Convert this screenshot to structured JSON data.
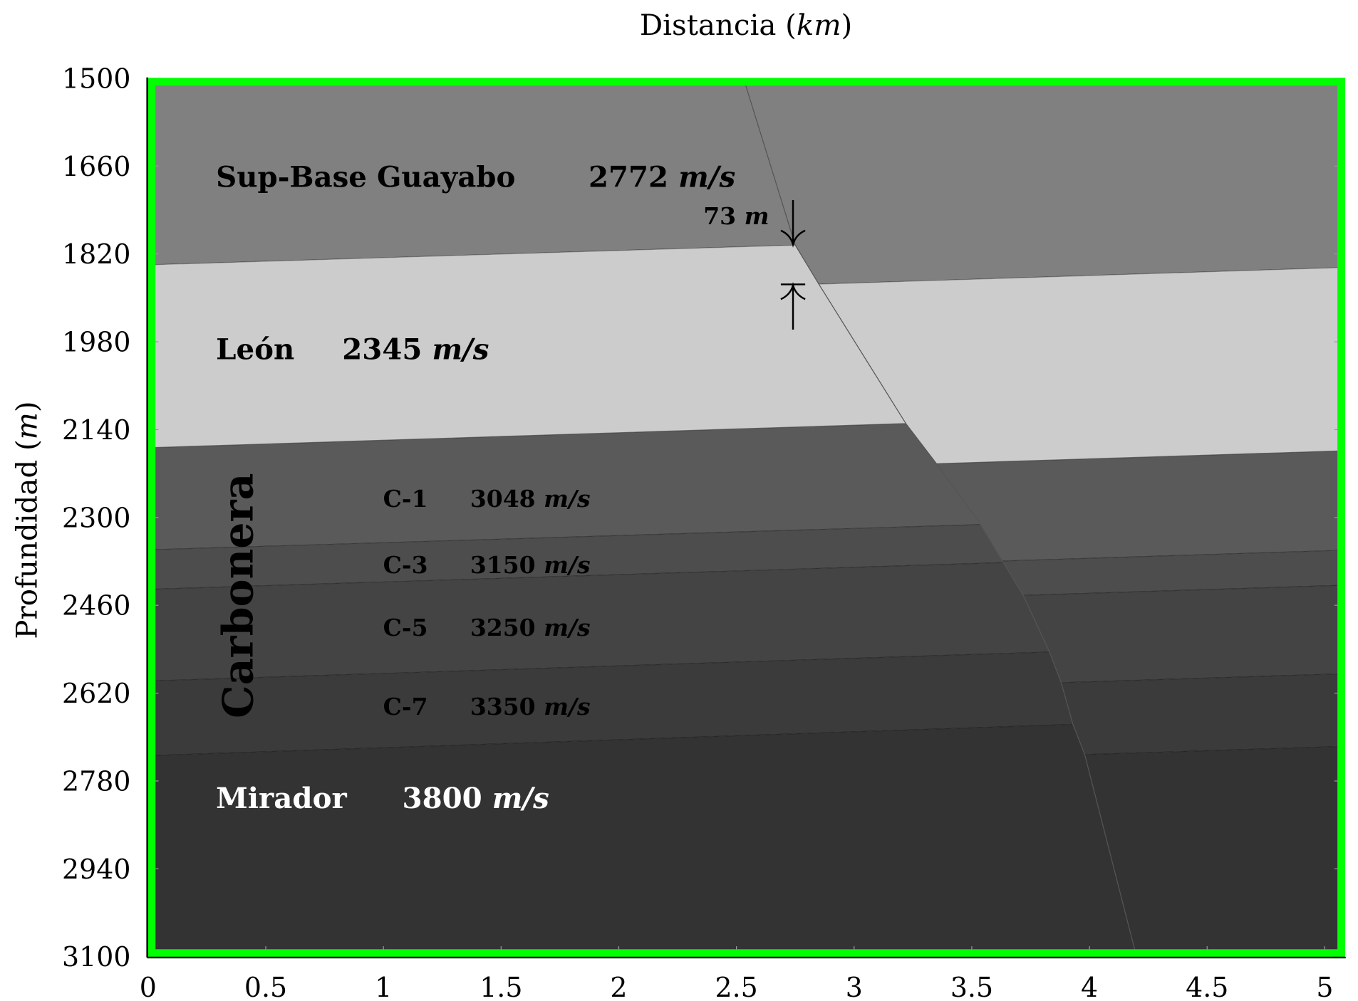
{
  "figure": {
    "x_axis_label": "Distancia",
    "x_axis_unit": "km",
    "y_axis_label": "Profundidad",
    "y_axis_unit": "m",
    "x_ticks": [
      "0",
      "0.5",
      "1",
      "1.5",
      "2",
      "2.5",
      "3",
      "3.5",
      "4",
      "4.5",
      "5"
    ],
    "y_ticks": [
      "1500",
      "1660",
      "1820",
      "1980",
      "2140",
      "2300",
      "2460",
      "2620",
      "2780",
      "2940",
      "3100"
    ],
    "x_range_km": [
      0,
      5.085
    ],
    "y_range_m": [
      1500,
      3100
    ],
    "y_inverted": true,
    "frame_color": "#00ff00"
  },
  "layers": [
    {
      "name": "Sup-Base Guayabo",
      "velocity": "2772",
      "unit": "m/s",
      "color": "#808080"
    },
    {
      "name": "León",
      "velocity": "2345",
      "unit": "m/s",
      "color": "#cccccc"
    },
    {
      "name": "C-1",
      "velocity": "3048",
      "unit": "m/s",
      "color": "#5a5a5a"
    },
    {
      "name": "C-3",
      "velocity": "3150",
      "unit": "m/s",
      "color": "#4d4d4d"
    },
    {
      "name": "C-5",
      "velocity": "3250",
      "unit": "m/s",
      "color": "#444444"
    },
    {
      "name": "C-7",
      "velocity": "3350",
      "unit": "m/s",
      "color": "#3b3b3b"
    },
    {
      "name": "Mirador",
      "velocity": "3800",
      "unit": "m/s",
      "color": "#333333"
    }
  ],
  "group_label": "Carbonera",
  "boundaries_depth_at_0_and_5km": {
    "hanging_wall_left": [
      [
        1840,
        1774.5
      ],
      [
        2173,
        2104.5
      ],
      [
        2359,
        2294
      ],
      [
        2431,
        2364
      ],
      [
        2598,
        2529
      ],
      [
        2734,
        2661.5
      ]
    ],
    "footwall_right": [
      [
        1913.8,
        1845.8
      ],
      [
        2247.6,
        2179.6
      ],
      [
        2428.8,
        2360.8
      ],
      [
        2492.6,
        2424.6
      ],
      [
        2653.8,
        2585.8
      ],
      [
        2786.1,
        2718.1
      ]
    ]
  },
  "fault_trace_km_m": [
    [
      2.53,
      1500
    ],
    [
      2.75,
      1804
    ],
    [
      2.85,
      1875
    ],
    [
      3.22,
      2129
    ],
    [
      3.35,
      2202
    ],
    [
      3.53,
      2308
    ],
    [
      3.72,
      2443
    ],
    [
      3.83,
      2545
    ],
    [
      3.88,
      2601
    ],
    [
      3.93,
      2677
    ],
    [
      3.98,
      2732
    ],
    [
      4.2,
      3100
    ]
  ],
  "throw_annotation": {
    "value": "73",
    "unit": "m"
  }
}
